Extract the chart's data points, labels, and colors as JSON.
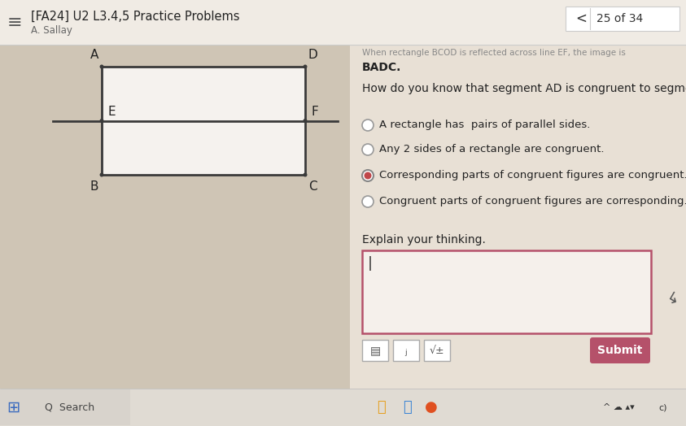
{
  "title": "[FA24] U2 L3.4,5 Practice Problems",
  "subtitle": "A. Sallay",
  "nav_text": "25 of 34",
  "top_text_partial": "When rectangle BCOD is reflected across line EF, the image is",
  "top_text_line2": "BADC.",
  "question": "How do you know that segment AD is congruent to segment BD?",
  "choices": [
    "A rectangle has  pairs of parallel sides.",
    "Any 2 sides of a rectangle are congruent.",
    "Corresponding parts of congruent figures are congruent.",
    "Congruent parts of congruent figures are corresponding."
  ],
  "selected_choice": 2,
  "explain_label": "Explain your thinking.",
  "submit_btn": "Submit",
  "bg_color": "#d4c9bb",
  "panel_color": "#e8e0d5",
  "left_panel_color": "#cfc5b5",
  "rect_fill": "#f5f2ee",
  "rect_border": "#3a3a3a",
  "line_cross_color": "#3a3a3a",
  "radio_selected_color": "#c0474a",
  "radio_unselected_color": "#aaaaaa",
  "submit_bg": "#b5516a",
  "submit_text_color": "#ffffff",
  "textbox_border": "#b5516a",
  "title_bar_color": "#f0ebe4",
  "bottom_bar_color": "#e0dbd3"
}
